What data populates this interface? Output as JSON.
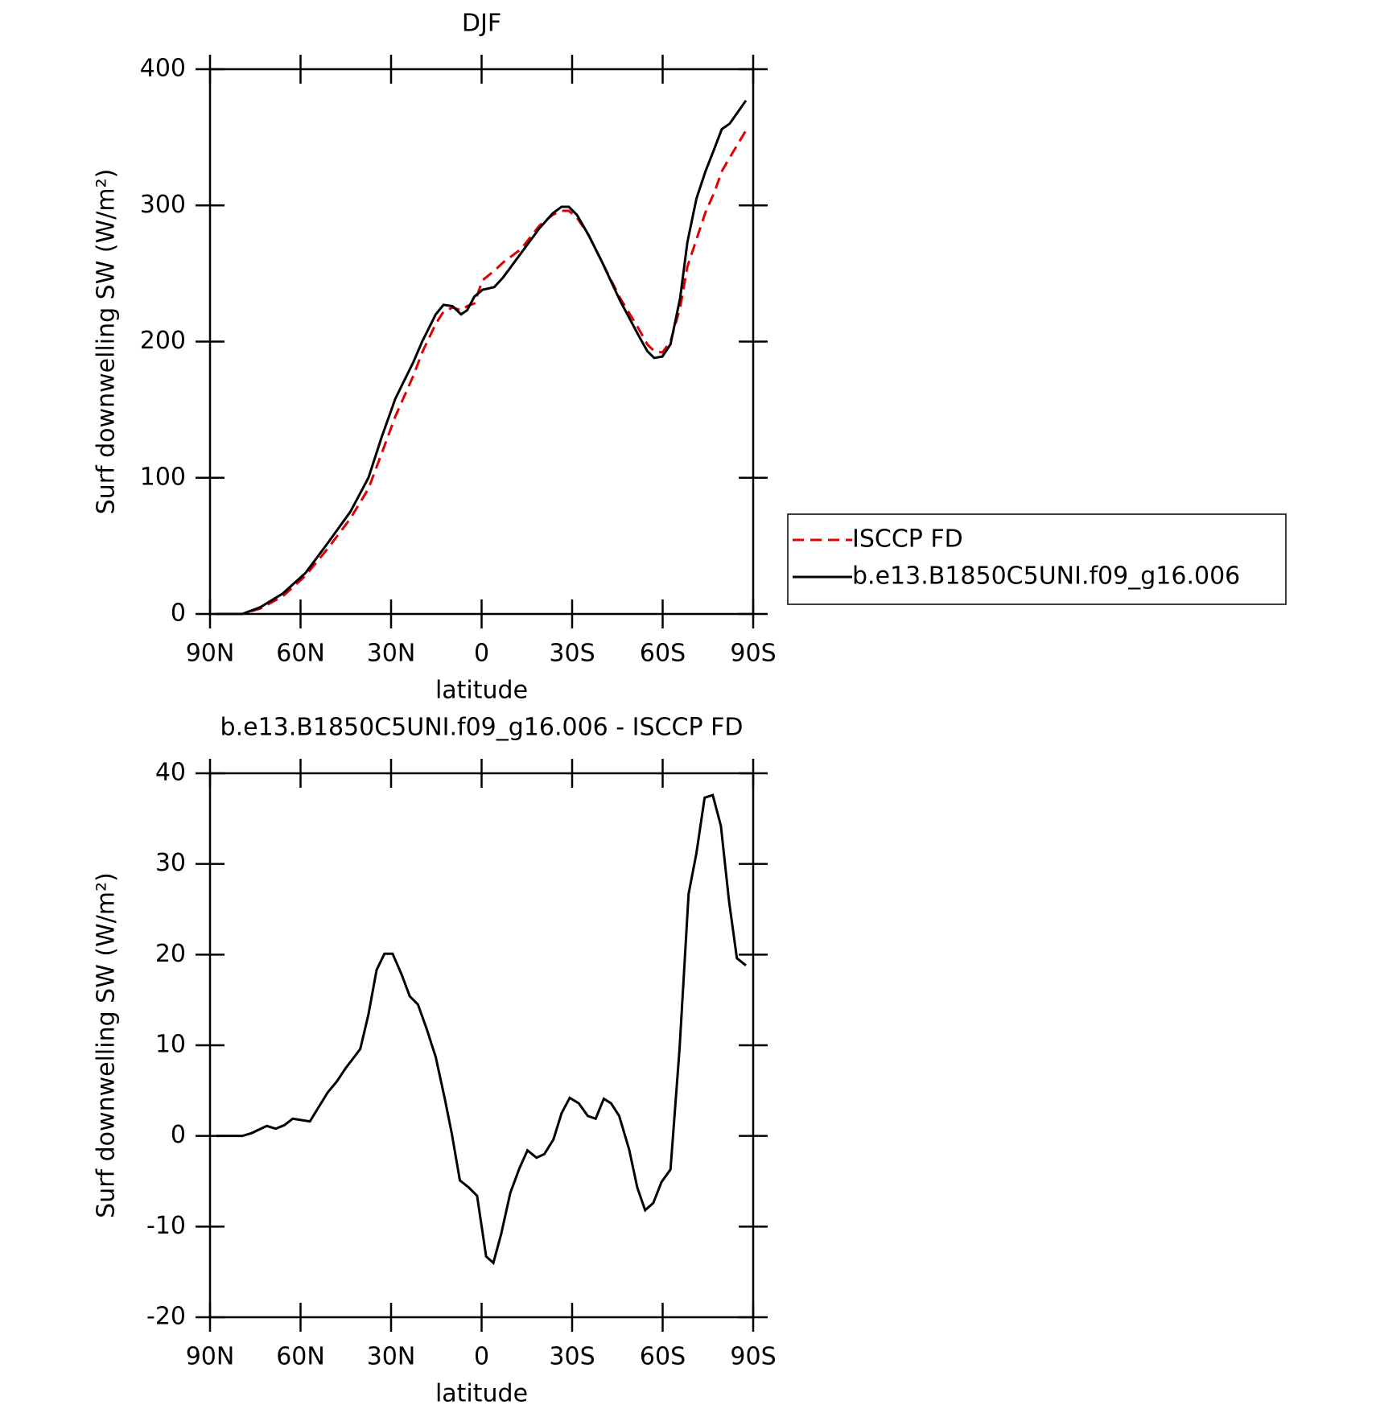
{
  "chart_data": [
    {
      "type": "line",
      "title": "DJF",
      "xlabel": "latitude",
      "ylabel": "Surf downwelling SW (W/m²)",
      "xlim": [
        90,
        -90
      ],
      "xticks": [
        {
          "value": 90,
          "label": "90N"
        },
        {
          "value": 60,
          "label": "60N"
        },
        {
          "value": 30,
          "label": "30N"
        },
        0,
        {
          "value": -30,
          "label": "30S"
        },
        {
          "value": -60,
          "label": "60S"
        },
        {
          "value": -90,
          "label": "90S"
        }
      ],
      "ylim": [
        0,
        400
      ],
      "yticks": [
        0,
        100,
        200,
        300,
        400
      ],
      "x": [
        87.9,
        79.3,
        73.3,
        65.9,
        58.4,
        51.0,
        43.5,
        37.5,
        33.1,
        28.6,
        22.6,
        19.7,
        15.2,
        12.6,
        9.6,
        6.8,
        4.8,
        2.4,
        -0.3,
        -4.2,
        -7.1,
        -13.1,
        -19.1,
        -23.5,
        -26.5,
        -28.9,
        -31.6,
        -35.5,
        -40.0,
        -45.9,
        -51.9,
        -54.9,
        -57.2,
        -59.9,
        -62.6,
        -65.8,
        -68.2,
        -71.2,
        -74.2,
        -77.2,
        -79.6,
        -82.2,
        -87.6
      ],
      "series": [
        {
          "name": "ISCCP FD",
          "color": "#e00000",
          "dash": true,
          "values": [
            0,
            0,
            4,
            13,
            28,
            48,
            70,
            92,
            118,
            145,
            175,
            192,
            213,
            222,
            225,
            223,
            226,
            228,
            245,
            252,
            258,
            268,
            285,
            293,
            296,
            296,
            291,
            278,
            258,
            232,
            210,
            198,
            193,
            192,
            200,
            225,
            255,
            275,
            295,
            310,
            325,
            335,
            355
          ]
        },
        {
          "name": "b.e13.B1850C5UNI.f09_g16.006",
          "color": "#000000",
          "dash": false,
          "values": [
            0,
            0,
            5,
            15,
            30,
            52,
            75,
            100,
            130,
            158,
            185,
            200,
            220,
            227,
            226,
            220,
            223,
            233,
            238,
            240,
            247,
            265,
            283,
            294,
            299,
            299,
            293,
            278,
            258,
            230,
            205,
            193,
            188,
            189,
            198,
            232,
            273,
            305,
            325,
            342,
            356,
            360,
            377
          ]
        }
      ],
      "legend": "right"
    },
    {
      "type": "line",
      "title": "b.e13.B1850C5UNI.f09_g16.006 - ISCCP FD",
      "xlabel": "latitude",
      "ylabel": "Surf downwelling SW (W/m²)",
      "xlim": [
        90,
        -90
      ],
      "xticks": [
        {
          "value": 90,
          "label": "90N"
        },
        {
          "value": 60,
          "label": "60N"
        },
        {
          "value": 30,
          "label": "30N"
        },
        0,
        {
          "value": -30,
          "label": "30S"
        },
        {
          "value": -60,
          "label": "60S"
        },
        {
          "value": -90,
          "label": "90S"
        }
      ],
      "ylim": [
        -20,
        40
      ],
      "yticks": [
        -20,
        -10,
        0,
        10,
        20,
        30,
        40
      ],
      "x": [
        87.9,
        79.3,
        76.3,
        71.2,
        68.2,
        65.3,
        62.6,
        56.9,
        51.0,
        48.0,
        45.0,
        42.0,
        40.2,
        37.5,
        34.8,
        32.2,
        29.5,
        26.5,
        23.8,
        21.1,
        18.2,
        15.2,
        12.2,
        9.9,
        7.2,
        4.2,
        1.5,
        -1.5,
        -3.9,
        -6.5,
        -9.5,
        -12.5,
        -15.2,
        -18.2,
        -20.8,
        -23.8,
        -26.5,
        -29.2,
        -32.2,
        -35.2,
        -37.8,
        -40.5,
        -42.9,
        -45.6,
        -48.9,
        -51.6,
        -54.2,
        -56.9,
        -59.6,
        -62.6,
        -65.6,
        -68.6,
        -71.2,
        -73.9,
        -76.6,
        -79.3,
        -82.0,
        -84.6,
        -87.6
      ],
      "series": [
        {
          "color": "#000000",
          "dash": false,
          "values": [
            0,
            0,
            0.3,
            1.1,
            0.8,
            1.2,
            1.9,
            1.6,
            4.8,
            6,
            7.5,
            8.8,
            9.6,
            13.4,
            18.3,
            20.1,
            20.1,
            17.8,
            15.4,
            14.5,
            11.8,
            8.7,
            4.1,
            0.3,
            -4.9,
            -5.7,
            -6.6,
            -13.3,
            -14,
            -10.8,
            -6.3,
            -3.6,
            -1.6,
            -2.4,
            -2.0,
            -0.4,
            2.5,
            4.2,
            3.6,
            2.2,
            1.9,
            4.1,
            3.6,
            2.2,
            -1.5,
            -5.7,
            -8.2,
            -7.4,
            -5.1,
            -3.7,
            9.6,
            26.7,
            31.2,
            37.3,
            37.6,
            34.2,
            25.9,
            19.6,
            18.8
          ]
        }
      ]
    }
  ]
}
